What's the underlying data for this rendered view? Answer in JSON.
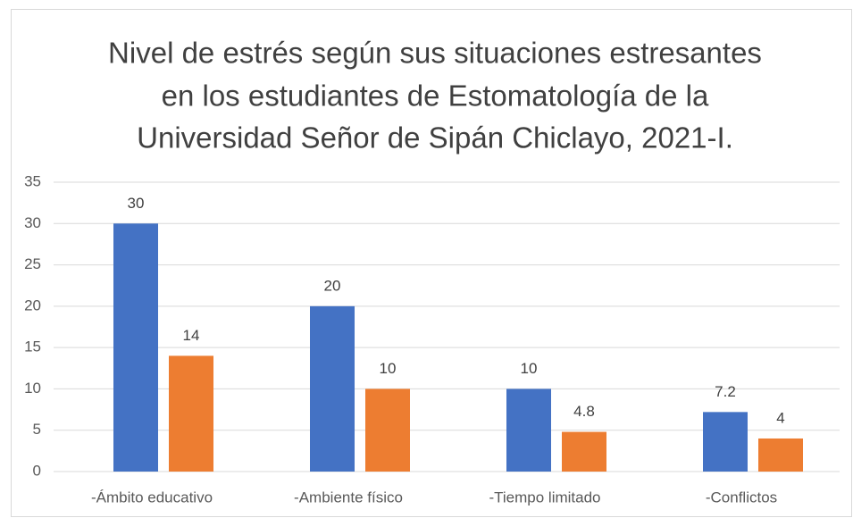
{
  "chart_data": {
    "type": "bar",
    "title": [
      "Nivel de estrés según sus situaciones estresantes",
      "en los estudiantes de Estomatología de la",
      "Universidad Señor de Sipán Chiclayo, 2021-I."
    ],
    "categories": [
      "-Ámbito educativo",
      "-Ambiente físico",
      "-Tiempo limitado",
      "-Conflictos"
    ],
    "series": [
      {
        "color": "#4472c4",
        "values": [
          30,
          20,
          10,
          7.2
        ]
      },
      {
        "color": "#ed7d31",
        "values": [
          14,
          10,
          4.8,
          4
        ]
      }
    ],
    "ylim": [
      0,
      35
    ],
    "yticks": [
      0,
      5,
      10,
      15,
      20,
      25,
      30,
      35
    ],
    "grid": true
  }
}
